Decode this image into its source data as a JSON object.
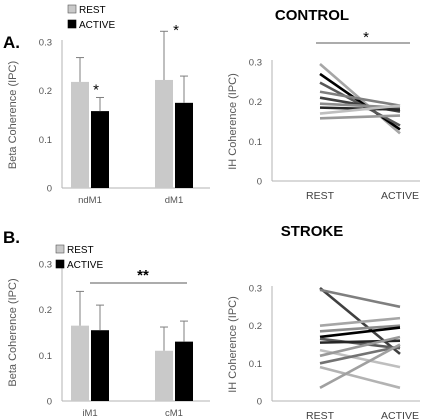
{
  "panels": [
    {
      "label": "A.",
      "title": "CONTROL"
    },
    {
      "label": "B.",
      "title": "STROKE"
    }
  ],
  "colors": {
    "rest_bar": "#c9c9c9",
    "active_bar": "#000000",
    "error_bar": "#7f7f7f",
    "axis": "#b3b3b3",
    "tick_text": "#555555",
    "label_text": "#595959"
  },
  "chart_data": [
    {
      "type": "bar",
      "title": "",
      "ylabel": "Beta Coherence (IPC)",
      "ylim": [
        0,
        0.3
      ],
      "yticks": [
        "0",
        "0.1",
        "0.2",
        "0.3"
      ],
      "categories": [
        "ndM1",
        "dM1"
      ],
      "series": [
        {
          "name": "REST",
          "values": [
            0.218,
            0.222
          ],
          "errors": [
            0.05,
            0.1
          ]
        },
        {
          "name": "ACTIVE",
          "values": [
            0.158,
            0.175
          ],
          "errors": [
            0.028,
            0.055
          ]
        }
      ],
      "legend": [
        "REST",
        "ACTIVE"
      ],
      "legend_position": "top-left",
      "annotations": [
        "*",
        "*"
      ]
    },
    {
      "type": "line",
      "title": "",
      "ylabel": "IH Coherence (IPC)",
      "ylim": [
        0,
        0.3
      ],
      "yticks": [
        "0",
        "0.1",
        "0.2",
        "0.3"
      ],
      "categories": [
        "REST",
        "ACTIVE"
      ],
      "series": [
        {
          "values": [
            0.295,
            0.12
          ],
          "color": "#a6a6a6"
        },
        {
          "values": [
            0.27,
            0.13
          ],
          "color": "#000000"
        },
        {
          "values": [
            0.248,
            0.14
          ],
          "color": "#595959"
        },
        {
          "values": [
            0.225,
            0.19
          ],
          "color": "#7f7f7f"
        },
        {
          "values": [
            0.21,
            0.175
          ],
          "color": "#404040"
        },
        {
          "values": [
            0.195,
            0.185
          ],
          "color": "#8c8c8c"
        },
        {
          "values": [
            0.185,
            0.18
          ],
          "color": "#262626"
        },
        {
          "values": [
            0.17,
            0.19
          ],
          "color": "#bfbfbf"
        },
        {
          "values": [
            0.158,
            0.165
          ],
          "color": "#999999"
        }
      ],
      "annotations": [
        "*"
      ]
    },
    {
      "type": "bar",
      "title": "",
      "ylabel": "Beta Coherence (IPC)",
      "ylim": [
        0,
        0.3
      ],
      "yticks": [
        "0",
        "0.1",
        "0.2",
        "0.3"
      ],
      "categories": [
        "iM1",
        "cM1"
      ],
      "series": [
        {
          "name": "REST",
          "values": [
            0.165,
            0.11
          ],
          "errors": [
            0.075,
            0.052
          ]
        },
        {
          "name": "ACTIVE",
          "values": [
            0.155,
            0.13
          ],
          "errors": [
            0.055,
            0.045
          ]
        }
      ],
      "legend": [
        "REST",
        "ACTIVE"
      ],
      "legend_position": "top-left",
      "annotations": [
        "**"
      ]
    },
    {
      "type": "line",
      "title": "",
      "ylabel": "IH Coherence (IPC)",
      "ylim": [
        0,
        0.3
      ],
      "yticks": [
        "0",
        "0.1",
        "0.2",
        "0.3"
      ],
      "categories": [
        "REST",
        "ACTIVE"
      ],
      "series": [
        {
          "values": [
            0.3,
            0.125
          ],
          "color": "#404040"
        },
        {
          "values": [
            0.295,
            0.25
          ],
          "color": "#7f7f7f"
        },
        {
          "values": [
            0.2,
            0.22
          ],
          "color": "#a6a6a6"
        },
        {
          "values": [
            0.185,
            0.2
          ],
          "color": "#8c8c8c"
        },
        {
          "values": [
            0.17,
            0.195
          ],
          "color": "#000000"
        },
        {
          "values": [
            0.165,
            0.14
          ],
          "color": "#595959"
        },
        {
          "values": [
            0.155,
            0.16
          ],
          "color": "#262626"
        },
        {
          "values": [
            0.135,
            0.09
          ],
          "color": "#bfbfbf"
        },
        {
          "values": [
            0.12,
            0.17
          ],
          "color": "#999999"
        },
        {
          "values": [
            0.1,
            0.145
          ],
          "color": "#737373"
        },
        {
          "values": [
            0.09,
            0.035
          ],
          "color": "#b3b3b3"
        },
        {
          "values": [
            0.035,
            0.15
          ],
          "color": "#a0a0a0"
        }
      ],
      "annotations": []
    }
  ]
}
